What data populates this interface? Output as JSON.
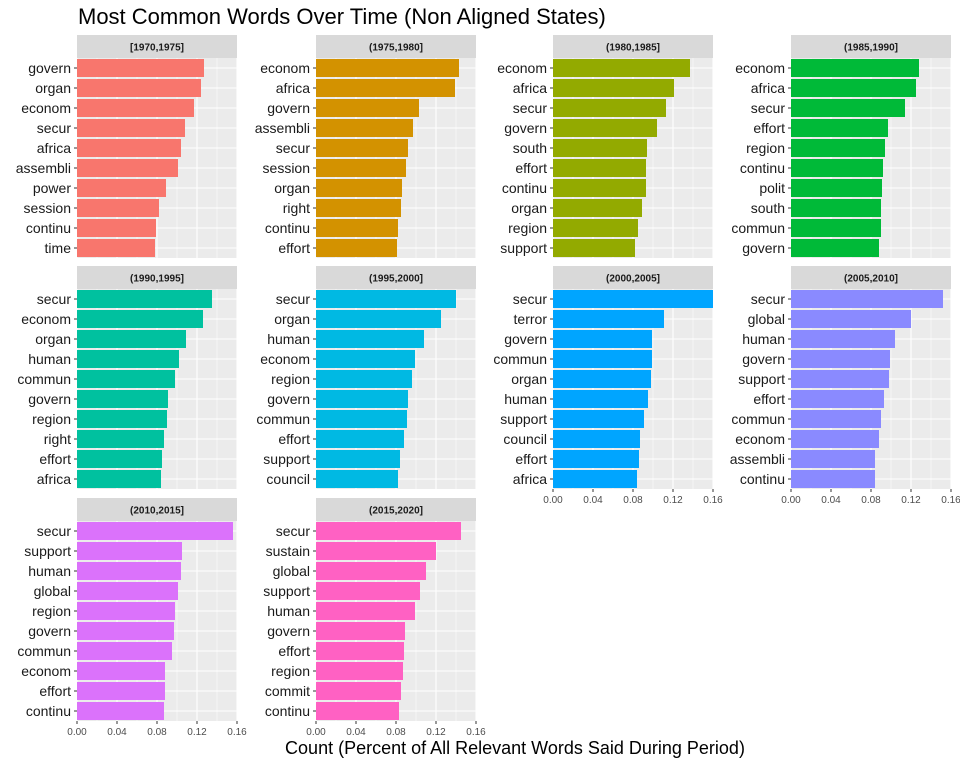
{
  "chart_data": {
    "type": "bar",
    "title": "Most Common Words Over Time (Non Aligned States)",
    "xlabel": "Count (Percent of All Relevant Words Said During Period)",
    "ylabel": "",
    "xlim": [
      0,
      0.16
    ],
    "xticks": [
      "0.00",
      "0.04",
      "0.08",
      "0.12",
      "0.16"
    ],
    "grid": true,
    "panels": [
      {
        "name": "[1970,1975]",
        "color": "#F8766D",
        "categories": [
          "govern",
          "organ",
          "econom",
          "secur",
          "africa",
          "assembli",
          "power",
          "session",
          "continu",
          "time"
        ],
        "values": [
          0.127,
          0.124,
          0.117,
          0.108,
          0.104,
          0.101,
          0.089,
          0.082,
          0.079,
          0.078
        ]
      },
      {
        "name": "(1975,1980]",
        "color": "#D39200",
        "categories": [
          "econom",
          "africa",
          "govern",
          "assembli",
          "secur",
          "session",
          "organ",
          "right",
          "continu",
          "effort"
        ],
        "values": [
          0.143,
          0.139,
          0.103,
          0.097,
          0.092,
          0.09,
          0.086,
          0.085,
          0.082,
          0.081
        ]
      },
      {
        "name": "(1980,1985]",
        "color": "#93AA00",
        "categories": [
          "econom",
          "africa",
          "secur",
          "govern",
          "south",
          "effort",
          "continu",
          "organ",
          "region",
          "support"
        ],
        "values": [
          0.137,
          0.121,
          0.113,
          0.104,
          0.094,
          0.093,
          0.093,
          0.089,
          0.085,
          0.082
        ]
      },
      {
        "name": "(1985,1990]",
        "color": "#00BA38",
        "categories": [
          "econom",
          "africa",
          "secur",
          "effort",
          "region",
          "continu",
          "polit",
          "south",
          "commun",
          "govern"
        ],
        "values": [
          0.128,
          0.125,
          0.114,
          0.097,
          0.094,
          0.092,
          0.091,
          0.09,
          0.09,
          0.088
        ]
      },
      {
        "name": "(1990,1995]",
        "color": "#00C19F",
        "categories": [
          "secur",
          "econom",
          "organ",
          "human",
          "commun",
          "govern",
          "region",
          "right",
          "effort",
          "africa"
        ],
        "values": [
          0.135,
          0.126,
          0.109,
          0.102,
          0.098,
          0.091,
          0.09,
          0.087,
          0.085,
          0.084
        ]
      },
      {
        "name": "(1995,2000]",
        "color": "#00B9E3",
        "categories": [
          "secur",
          "organ",
          "human",
          "econom",
          "region",
          "govern",
          "commun",
          "effort",
          "support",
          "council"
        ],
        "values": [
          0.14,
          0.125,
          0.108,
          0.099,
          0.096,
          0.092,
          0.091,
          0.088,
          0.084,
          0.082
        ]
      },
      {
        "name": "(2000,2005]",
        "color": "#00A5FF",
        "categories": [
          "secur",
          "terror",
          "govern",
          "commun",
          "organ",
          "human",
          "support",
          "council",
          "effort",
          "africa"
        ],
        "values": [
          0.165,
          0.111,
          0.099,
          0.099,
          0.098,
          0.095,
          0.091,
          0.087,
          0.086,
          0.084
        ]
      },
      {
        "name": "(2005,2010]",
        "color": "#8A8AFF",
        "categories": [
          "secur",
          "global",
          "human",
          "govern",
          "support",
          "effort",
          "commun",
          "econom",
          "assembli",
          "continu"
        ],
        "values": [
          0.152,
          0.12,
          0.104,
          0.099,
          0.098,
          0.093,
          0.09,
          0.088,
          0.084,
          0.084
        ]
      },
      {
        "name": "(2010,2015]",
        "color": "#DB72FB",
        "categories": [
          "secur",
          "support",
          "human",
          "global",
          "region",
          "govern",
          "commun",
          "econom",
          "effort",
          "continu"
        ],
        "values": [
          0.156,
          0.105,
          0.104,
          0.101,
          0.098,
          0.097,
          0.095,
          0.088,
          0.088,
          0.087
        ]
      },
      {
        "name": "(2015,2020]",
        "color": "#FF61C3",
        "categories": [
          "secur",
          "sustain",
          "global",
          "support",
          "human",
          "govern",
          "effort",
          "region",
          "commit",
          "continu"
        ],
        "values": [
          0.145,
          0.12,
          0.11,
          0.104,
          0.099,
          0.089,
          0.088,
          0.087,
          0.085,
          0.083
        ]
      }
    ]
  }
}
